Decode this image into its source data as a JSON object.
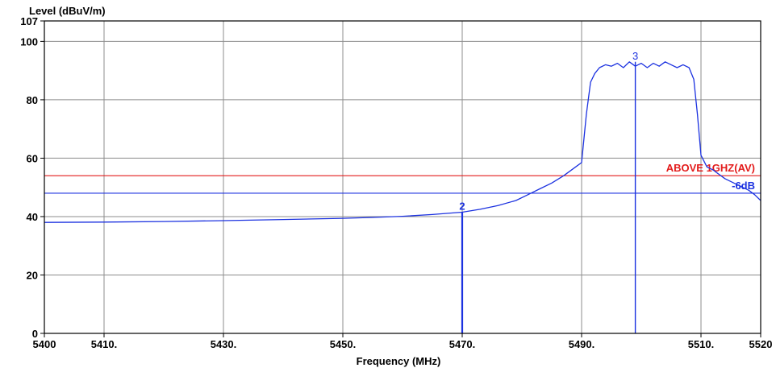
{
  "chart_data": {
    "type": "line",
    "ylabel": "Level (dBuV/m)",
    "xlabel": "Frequency (MHz)",
    "xlim": [
      5400,
      5520
    ],
    "ylim": [
      0,
      107
    ],
    "x_ticks": [
      {
        "value": 5400,
        "label": "5400"
      },
      {
        "value": 5410,
        "label": "5410."
      },
      {
        "value": 5430,
        "label": "5430."
      },
      {
        "value": 5450,
        "label": "5450."
      },
      {
        "value": 5470,
        "label": "5470."
      },
      {
        "value": 5490,
        "label": "5490."
      },
      {
        "value": 5510,
        "label": "5510."
      },
      {
        "value": 5520,
        "label": "5520"
      }
    ],
    "y_ticks": [
      {
        "value": 0,
        "label": "0"
      },
      {
        "value": 20,
        "label": "20"
      },
      {
        "value": 40,
        "label": "40"
      },
      {
        "value": 60,
        "label": "60"
      },
      {
        "value": 80,
        "label": "80"
      },
      {
        "value": 100,
        "label": "100"
      },
      {
        "value": 107,
        "label": "107"
      }
    ],
    "x_gridlines": [
      5410,
      5430,
      5450,
      5470,
      5490,
      5510
    ],
    "y_gridlines": [
      20,
      40,
      60,
      80,
      100
    ],
    "grid": true,
    "limit_lines": [
      {
        "label": "ABOVE 1GHZ(AV)",
        "value": 54,
        "color": "#e31b1b"
      },
      {
        "label": "-6dB",
        "value": 48,
        "color": "#1c32e0"
      }
    ],
    "markers": [
      {
        "label": "2",
        "x": 5470,
        "y": 41.5
      },
      {
        "label": "3",
        "x": 5499,
        "y": 93
      }
    ],
    "series": [
      {
        "color": "#1c32e0",
        "x": [
          5400,
          5410,
          5420,
          5430,
          5440,
          5450,
          5455,
          5460,
          5465,
          5470,
          5473,
          5476,
          5479,
          5481,
          5483,
          5485,
          5487,
          5489,
          5490,
          5490.8,
          5491.5,
          5492.2,
          5493,
          5494,
          5495,
          5496,
          5497,
          5498,
          5499,
          5500,
          5501,
          5502,
          5503,
          5504,
          5505,
          5506,
          5507,
          5508,
          5508.8,
          5509.4,
          5510,
          5511,
          5512,
          5513,
          5514,
          5515,
          5516,
          5517,
          5518,
          5519,
          5520
        ],
        "y": [
          38,
          38.1,
          38.3,
          38.6,
          39,
          39.4,
          39.7,
          40.1,
          40.7,
          41.5,
          42.5,
          43.8,
          45.5,
          47.5,
          49.5,
          51.5,
          54,
          57,
          58.5,
          75,
          86,
          89,
          91,
          92,
          91.5,
          92.5,
          91,
          93,
          91.5,
          92.5,
          91,
          92.5,
          91.5,
          93,
          92,
          91,
          92,
          91,
          87,
          75,
          61,
          57,
          56,
          54.5,
          53,
          52,
          51,
          50,
          49,
          47.5,
          45.5
        ]
      }
    ]
  }
}
